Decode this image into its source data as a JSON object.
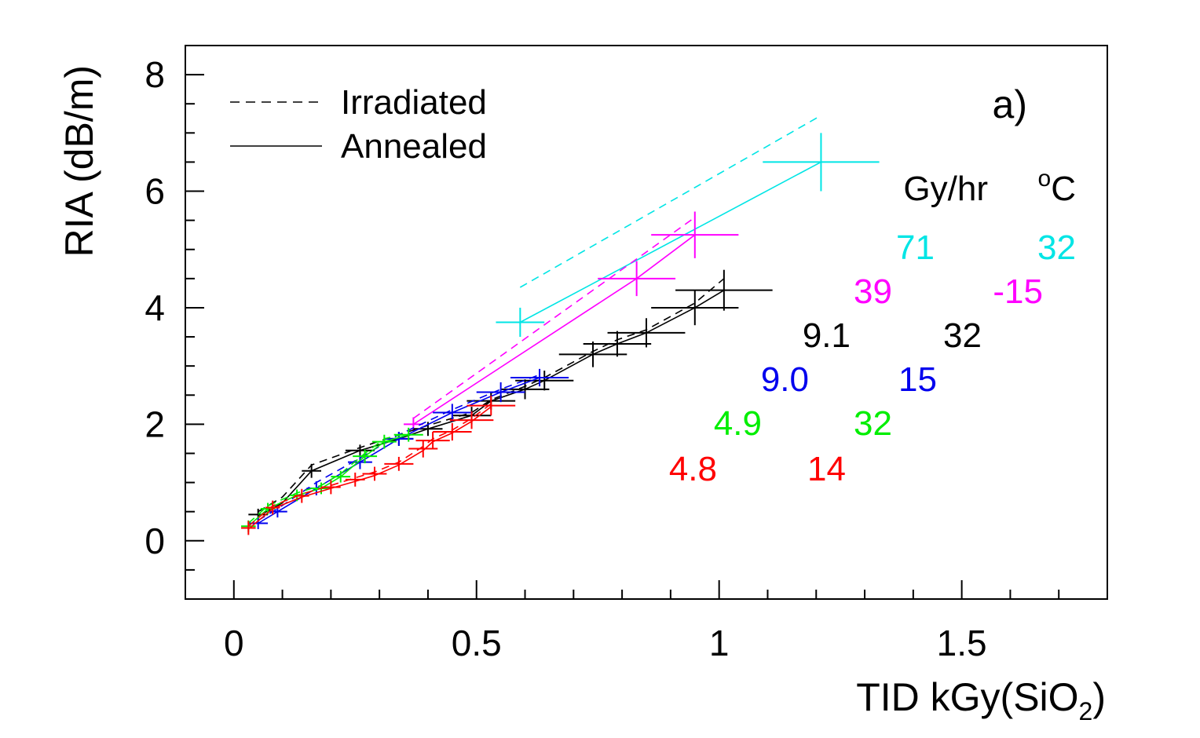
{
  "chart_data": {
    "type": "scatter",
    "panel_label": "a)",
    "xlabel": {
      "main": "TID kGy(SiO",
      "sub": "2",
      "close": ")"
    },
    "ylabel": "RIA (dB/m)",
    "xlim": [
      -0.1,
      1.8
    ],
    "ylim": [
      -1.0,
      8.5
    ],
    "x_ticks": [
      {
        "v": 0,
        "label": "0"
      },
      {
        "v": 0.5,
        "label": "0.5"
      },
      {
        "v": 1,
        "label": "1"
      },
      {
        "v": 1.5,
        "label": "1.5"
      }
    ],
    "y_ticks": [
      {
        "v": 0,
        "label": "0"
      },
      {
        "v": 2,
        "label": "2"
      },
      {
        "v": 4,
        "label": "4"
      },
      {
        "v": 6,
        "label": "6"
      },
      {
        "v": 8,
        "label": "8"
      }
    ],
    "legend": [
      {
        "label": "Irradiated",
        "style": "dashed"
      },
      {
        "label": "Annealed",
        "style": "solid"
      }
    ],
    "table_header": {
      "rate": "Gy/hr",
      "temp_sup": "o",
      "temp_unit": "C"
    },
    "series": [
      {
        "color": "#00e5e5",
        "rate": "71",
        "temp": "32",
        "irradiated": [
          [
            0.59,
            4.35
          ],
          [
            1.21,
            7.3
          ]
        ],
        "annealed": [
          [
            0.59,
            3.75
          ],
          [
            1.21,
            6.5
          ]
        ],
        "points": [
          [
            0.59,
            3.75,
            0.05,
            0.25
          ],
          [
            1.21,
            6.5,
            0.12,
            0.5
          ]
        ]
      },
      {
        "color": "#ff00ff",
        "rate": "39",
        "temp": "-15",
        "irradiated": [
          [
            0.37,
            2.1
          ],
          [
            0.95,
            5.55
          ]
        ],
        "annealed": [
          [
            0.37,
            2.0
          ],
          [
            0.83,
            4.5
          ],
          [
            0.95,
            5.25
          ]
        ],
        "points": [
          [
            0.37,
            2.0,
            0.02,
            0.12
          ],
          [
            0.83,
            4.5,
            0.08,
            0.3
          ],
          [
            0.95,
            5.25,
            0.09,
            0.4
          ]
        ]
      },
      {
        "color": "#000000",
        "rate": "9.1",
        "temp": "32",
        "irradiated": [
          [
            0.05,
            0.5
          ],
          [
            0.1,
            0.75
          ],
          [
            0.16,
            1.3
          ],
          [
            0.26,
            1.6
          ],
          [
            0.34,
            1.82
          ],
          [
            0.4,
            1.98
          ],
          [
            0.49,
            2.2
          ],
          [
            0.53,
            2.42
          ],
          [
            0.6,
            2.65
          ],
          [
            0.64,
            2.8
          ],
          [
            0.74,
            3.25
          ],
          [
            0.79,
            3.45
          ],
          [
            0.85,
            3.62
          ],
          [
            0.95,
            4.08
          ],
          [
            1.01,
            4.5
          ]
        ],
        "annealed": [
          [
            0.05,
            0.42
          ],
          [
            0.1,
            0.65
          ],
          [
            0.16,
            1.2
          ],
          [
            0.26,
            1.55
          ],
          [
            0.34,
            1.75
          ],
          [
            0.4,
            1.92
          ],
          [
            0.49,
            2.15
          ],
          [
            0.53,
            2.4
          ],
          [
            0.6,
            2.6
          ],
          [
            0.64,
            2.75
          ],
          [
            0.74,
            3.2
          ],
          [
            0.79,
            3.38
          ],
          [
            0.85,
            3.57
          ],
          [
            0.95,
            4.0
          ],
          [
            1.01,
            4.3
          ]
        ],
        "points": [
          [
            0.05,
            0.45,
            0.02,
            0.1
          ],
          [
            0.16,
            1.2,
            0.02,
            0.12
          ],
          [
            0.26,
            1.55,
            0.03,
            0.1
          ],
          [
            0.34,
            1.75,
            0.03,
            0.12
          ],
          [
            0.4,
            1.92,
            0.03,
            0.12
          ],
          [
            0.49,
            2.15,
            0.04,
            0.15
          ],
          [
            0.53,
            2.4,
            0.05,
            0.15
          ],
          [
            0.6,
            2.6,
            0.05,
            0.17
          ],
          [
            0.64,
            2.75,
            0.06,
            0.17
          ],
          [
            0.74,
            3.2,
            0.07,
            0.22
          ],
          [
            0.79,
            3.38,
            0.07,
            0.22
          ],
          [
            0.85,
            3.57,
            0.08,
            0.25
          ],
          [
            0.95,
            4.0,
            0.09,
            0.3
          ],
          [
            1.01,
            4.3,
            0.1,
            0.35
          ]
        ]
      },
      {
        "color": "#0000ee",
        "rate": "9.0",
        "temp": "15",
        "irradiated": [
          [
            0.05,
            0.35
          ],
          [
            0.09,
            0.55
          ],
          [
            0.17,
            1.0
          ],
          [
            0.26,
            1.42
          ],
          [
            0.34,
            1.82
          ],
          [
            0.45,
            2.25
          ],
          [
            0.55,
            2.6
          ],
          [
            0.63,
            2.85
          ]
        ],
        "annealed": [
          [
            0.05,
            0.3
          ],
          [
            0.09,
            0.5
          ],
          [
            0.17,
            0.9
          ],
          [
            0.26,
            1.35
          ],
          [
            0.34,
            1.75
          ],
          [
            0.45,
            2.2
          ],
          [
            0.55,
            2.55
          ],
          [
            0.63,
            2.8
          ]
        ],
        "points": [
          [
            0.05,
            0.3,
            0.02,
            0.1
          ],
          [
            0.09,
            0.5,
            0.02,
            0.1
          ],
          [
            0.17,
            0.9,
            0.02,
            0.12
          ],
          [
            0.26,
            1.35,
            0.025,
            0.12
          ],
          [
            0.34,
            1.75,
            0.03,
            0.12
          ],
          [
            0.45,
            2.2,
            0.04,
            0.15
          ],
          [
            0.55,
            2.55,
            0.05,
            0.17
          ],
          [
            0.63,
            2.8,
            0.06,
            0.15
          ]
        ]
      },
      {
        "color": "#00ee00",
        "rate": "4.9",
        "temp": "32",
        "irradiated": [
          [
            0.03,
            0.3
          ],
          [
            0.07,
            0.6
          ],
          [
            0.13,
            0.82
          ],
          [
            0.18,
            0.95
          ],
          [
            0.22,
            1.15
          ],
          [
            0.27,
            1.5
          ],
          [
            0.31,
            1.75
          ],
          [
            0.36,
            1.85
          ]
        ],
        "annealed": [
          [
            0.03,
            0.25
          ],
          [
            0.07,
            0.55
          ],
          [
            0.13,
            0.78
          ],
          [
            0.18,
            0.9
          ],
          [
            0.22,
            1.1
          ],
          [
            0.27,
            1.45
          ],
          [
            0.31,
            1.7
          ],
          [
            0.36,
            1.82
          ]
        ],
        "points": [
          [
            0.03,
            0.25,
            0.015,
            0.1
          ],
          [
            0.07,
            0.55,
            0.015,
            0.1
          ],
          [
            0.13,
            0.78,
            0.015,
            0.1
          ],
          [
            0.18,
            0.9,
            0.02,
            0.1
          ],
          [
            0.22,
            1.1,
            0.02,
            0.1
          ],
          [
            0.27,
            1.45,
            0.025,
            0.12
          ],
          [
            0.31,
            1.7,
            0.025,
            0.12
          ],
          [
            0.36,
            1.82,
            0.03,
            0.12
          ]
        ]
      },
      {
        "color": "#ff0000",
        "rate": "4.8",
        "temp": "14",
        "irradiated": [
          [
            0.03,
            0.25
          ],
          [
            0.08,
            0.6
          ],
          [
            0.14,
            0.8
          ],
          [
            0.2,
            0.95
          ],
          [
            0.25,
            1.08
          ],
          [
            0.29,
            1.18
          ],
          [
            0.34,
            1.35
          ],
          [
            0.39,
            1.62
          ],
          [
            0.41,
            1.75
          ],
          [
            0.45,
            1.9
          ],
          [
            0.49,
            2.1
          ],
          [
            0.53,
            2.35
          ]
        ],
        "annealed": [
          [
            0.03,
            0.2
          ],
          [
            0.08,
            0.55
          ],
          [
            0.14,
            0.75
          ],
          [
            0.2,
            0.9
          ],
          [
            0.25,
            1.02
          ],
          [
            0.29,
            1.12
          ],
          [
            0.34,
            1.3
          ],
          [
            0.39,
            1.55
          ],
          [
            0.41,
            1.7
          ],
          [
            0.45,
            1.85
          ],
          [
            0.49,
            2.05
          ],
          [
            0.53,
            2.3
          ]
        ],
        "points": [
          [
            0.03,
            0.22,
            0.015,
            0.12
          ],
          [
            0.08,
            0.57,
            0.015,
            0.12
          ],
          [
            0.14,
            0.77,
            0.015,
            0.12
          ],
          [
            0.2,
            0.92,
            0.02,
            0.12
          ],
          [
            0.25,
            1.05,
            0.02,
            0.12
          ],
          [
            0.29,
            1.15,
            0.025,
            0.12
          ],
          [
            0.34,
            1.32,
            0.03,
            0.12
          ],
          [
            0.39,
            1.58,
            0.03,
            0.15
          ],
          [
            0.41,
            1.72,
            0.035,
            0.15
          ],
          [
            0.45,
            1.87,
            0.04,
            0.15
          ],
          [
            0.49,
            2.07,
            0.045,
            0.15
          ],
          [
            0.53,
            2.32,
            0.05,
            0.17
          ]
        ]
      }
    ]
  }
}
